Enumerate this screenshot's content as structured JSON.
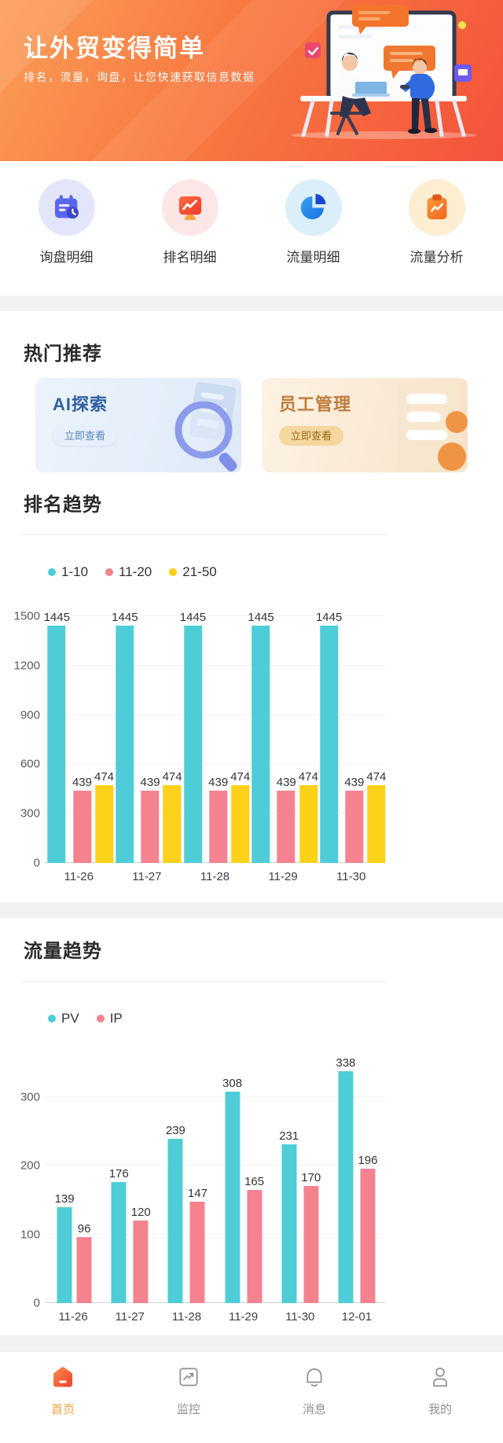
{
  "header": {
    "title": "让外贸变得简单",
    "subtitle": "排名，流量，询盘，让您快速获取信息数据"
  },
  "quick_actions": [
    {
      "label": "询盘明细",
      "icon": "calendar-clock-icon"
    },
    {
      "label": "排名明细",
      "icon": "monitor-trend-icon"
    },
    {
      "label": "流量明细",
      "icon": "pie-chart-icon"
    },
    {
      "label": "流量分析",
      "icon": "clipboard-trend-icon"
    }
  ],
  "hot_section": {
    "heading": "热门推荐",
    "cards": [
      {
        "title": "AI探索",
        "button": "立即查看",
        "accent": "#2f5f9e"
      },
      {
        "title": "员工管理",
        "button": "立即查看",
        "accent": "#bf7c3c"
      }
    ]
  },
  "rank_section": {
    "heading": "排名趋势"
  },
  "traffic_section": {
    "heading": "流量趋势"
  },
  "chart_data": [
    {
      "type": "bar",
      "title": "排名趋势",
      "categories": [
        "11-26",
        "11-27",
        "11-28",
        "11-29",
        "11-30"
      ],
      "series": [
        {
          "name": "1-10",
          "color": "#4ecdd8",
          "values": [
            1445,
            1445,
            1445,
            1445,
            1445
          ]
        },
        {
          "name": "11-20",
          "color": "#f4838f",
          "values": [
            439,
            439,
            439,
            439,
            439
          ]
        },
        {
          "name": "21-50",
          "color": "#fbd119",
          "values": [
            474,
            474,
            474,
            474,
            474
          ]
        }
      ],
      "ylim": [
        0,
        1500
      ],
      "yticks": [
        0,
        300,
        600,
        900,
        1200,
        1500
      ],
      "legend_position": "top-left",
      "grid": true
    },
    {
      "type": "bar",
      "title": "流量趋势",
      "categories": [
        "11-26",
        "11-27",
        "11-28",
        "11-29",
        "11-30",
        "12-01"
      ],
      "series": [
        {
          "name": "PV",
          "color": "#4ecdd8",
          "values": [
            139,
            176,
            239,
            308,
            231,
            338
          ]
        },
        {
          "name": "IP",
          "color": "#f4838f",
          "values": [
            96,
            120,
            147,
            165,
            170,
            196
          ]
        }
      ],
      "ylim": [
        0,
        350
      ],
      "yticks": [
        0,
        100,
        200,
        300
      ],
      "legend_position": "top-left",
      "grid": true
    }
  ],
  "tabbar": [
    {
      "label": "首页",
      "icon": "home-icon",
      "active": true
    },
    {
      "label": "监控",
      "icon": "monitor-icon",
      "active": false
    },
    {
      "label": "消息",
      "icon": "bell-icon",
      "active": false
    },
    {
      "label": "我的",
      "icon": "user-icon",
      "active": false
    }
  ],
  "colors": {
    "header_gradient_start": "#fb9d57",
    "header_gradient_end": "#f3523b",
    "active_tab": "#f0a13c",
    "inactive_tab": "#8f8f8f",
    "section_band": "#f1f2f4"
  }
}
